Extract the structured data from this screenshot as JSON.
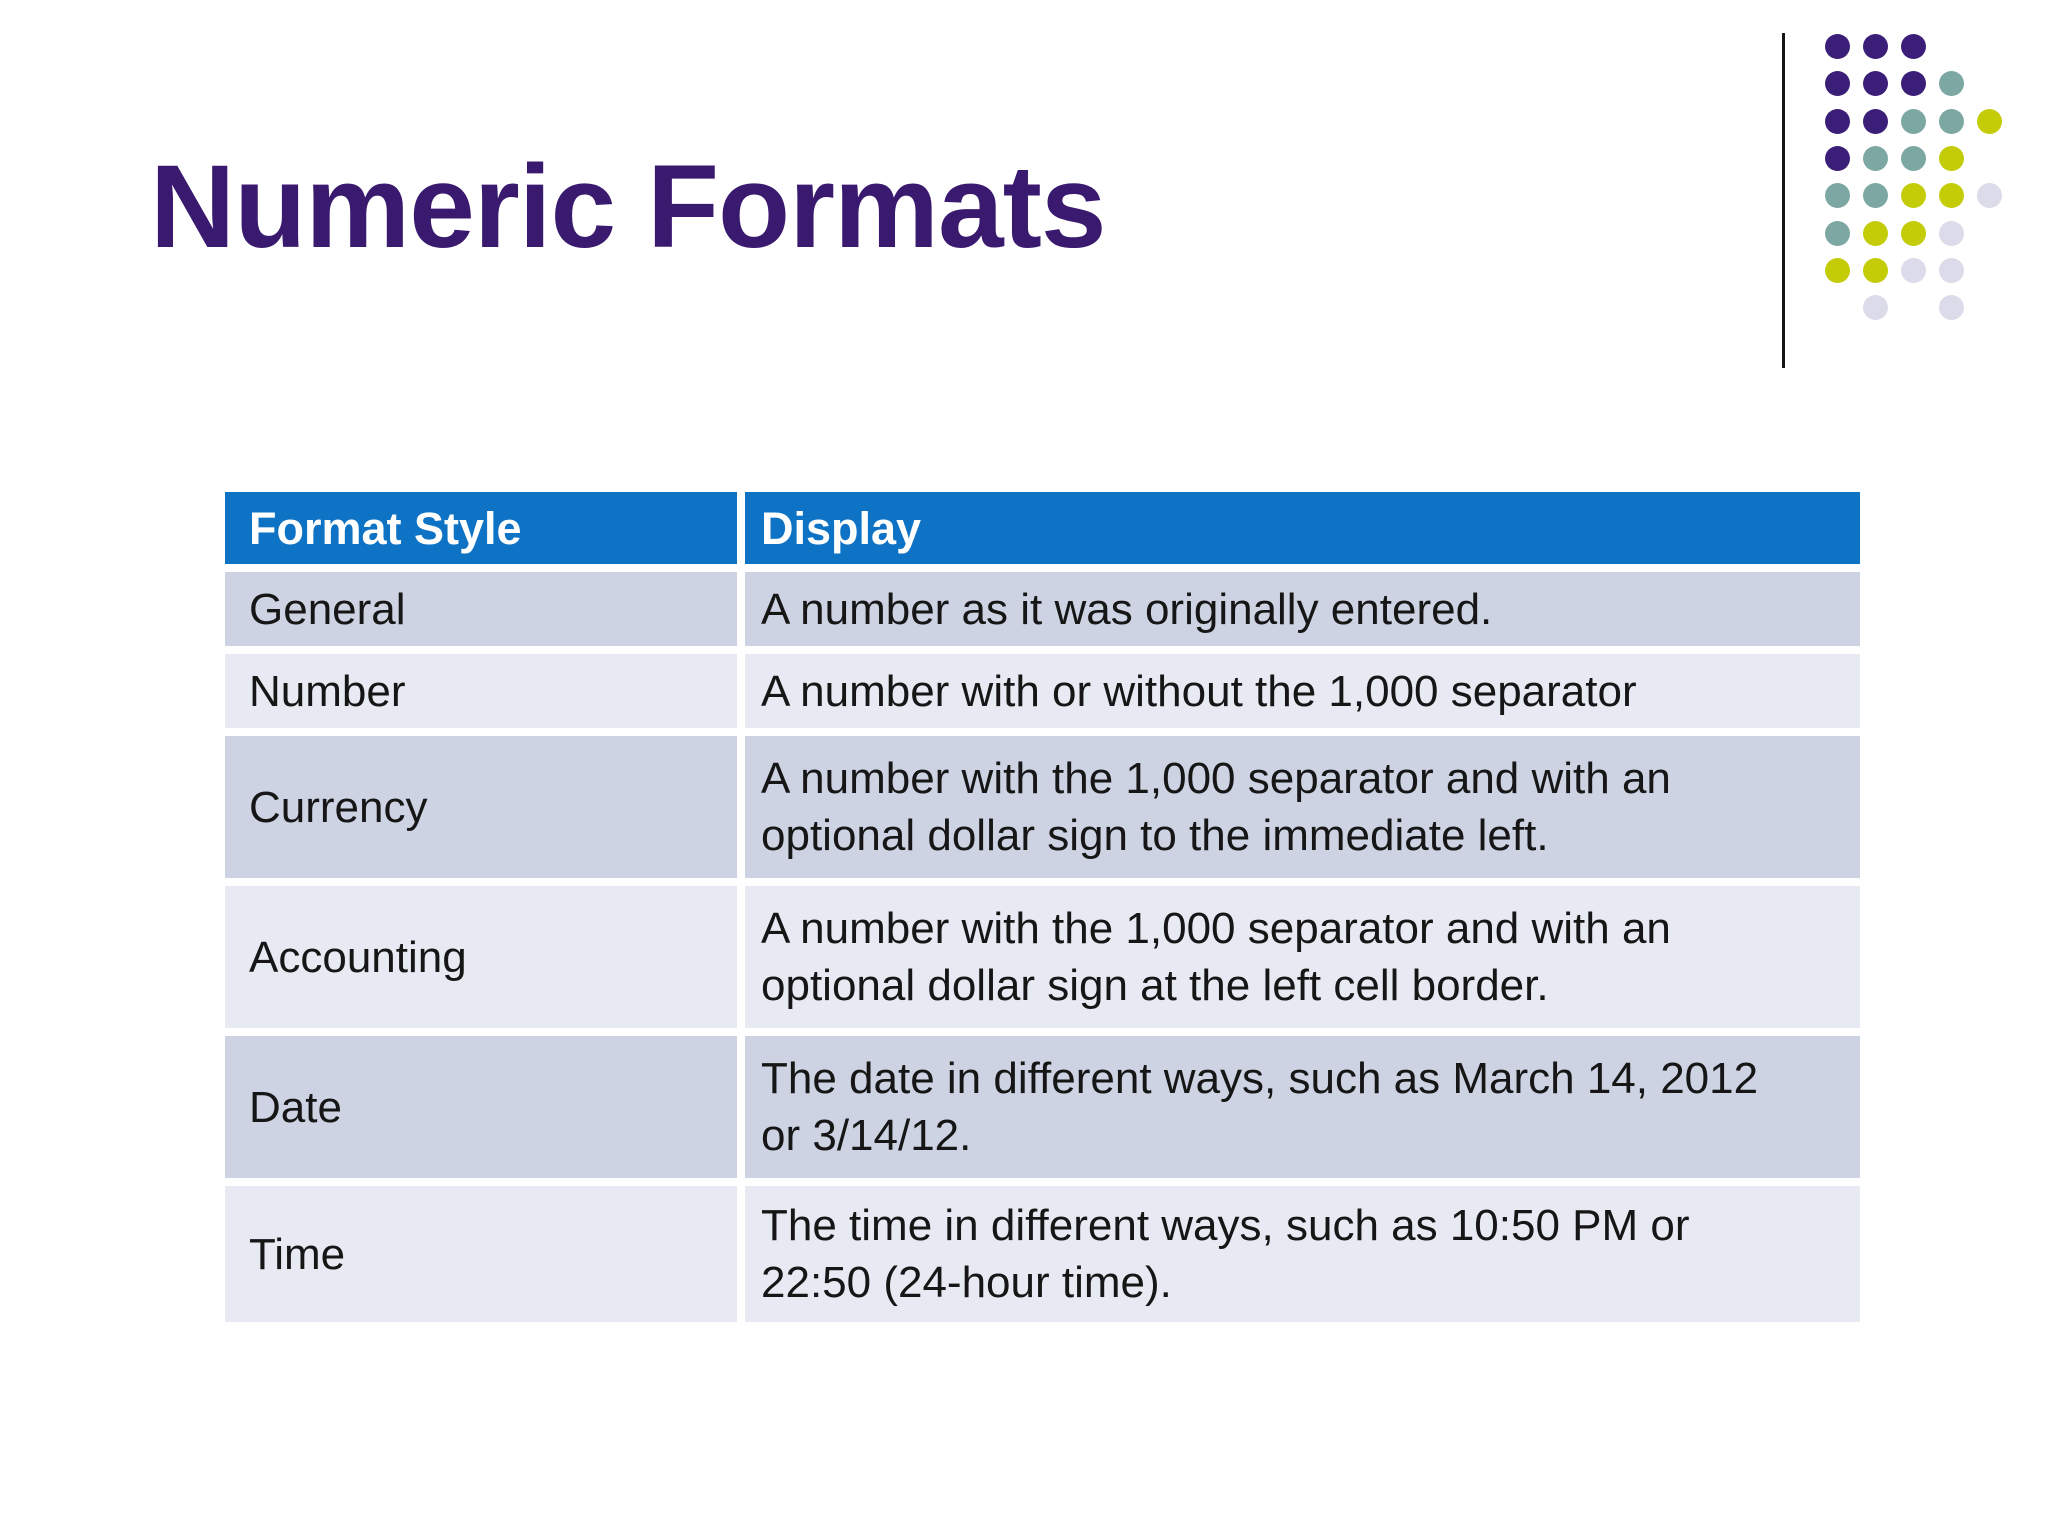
{
  "slide": {
    "title": "Numeric Formats",
    "background": "#FFFFFF",
    "title_color": "#3A1A6F"
  },
  "table": {
    "columns": [
      "Format Style",
      "Display"
    ],
    "rows": [
      {
        "style": "General",
        "display_lines": [
          "A number as it was originally entered."
        ]
      },
      {
        "style": "Number",
        "display_lines": [
          "A number with or without the 1,000 separator"
        ]
      },
      {
        "style": "Currency",
        "display_lines": [
          "A number with the 1,000 separator and with an",
          "optional dollar sign to the immediate left."
        ]
      },
      {
        "style": "Accounting",
        "display_lines": [
          "A number with the 1,000 separator and with an",
          "optional dollar sign at the left cell border."
        ]
      },
      {
        "style": "Date",
        "display_lines": [
          "The date in different ways, such as March 14, 2012",
          "or 3/14/12."
        ]
      },
      {
        "style": "Time",
        "display_lines": [
          "The time in different ways, such as 10:50 PM or",
          "22:50 (24-hour time)."
        ]
      }
    ],
    "colors": {
      "header_bg": "#0E73C4",
      "header_text": "#FFFFFF",
      "row_dark": "#CDD3E3",
      "row_light": "#E7EAF2",
      "body_text": "#161616"
    }
  },
  "decoration": {
    "line_color": "#161616",
    "dot_colors": {
      "P": "#3B1E78",
      "T": "#7DA7A2",
      "Y": "#C3CC06",
      "L": "#DBDBE9"
    },
    "grid": [
      "PPP..",
      "PPPT.",
      "PPTTY",
      "PTTY.",
      "TTYYL",
      "TYYL.",
      "YYLL.",
      ".L.L."
    ]
  }
}
